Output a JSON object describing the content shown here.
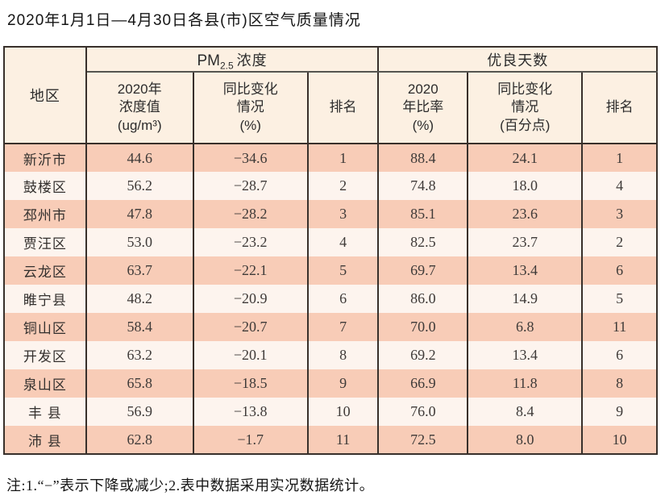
{
  "page": {
    "title": "2020年1月1日—4月30日各县(市)区空气质量情况",
    "footnote": "注:1.“−”表示下降或减少;2.表中数据采用实况数据统计。"
  },
  "table": {
    "corner_header": "地区",
    "groups": [
      {
        "prefix": "PM",
        "subscript": "2.5",
        "suffix": "浓度"
      },
      {
        "label": "优良天数"
      }
    ],
    "sub_headers": [
      "2020年\n浓度值\n(ug/m³)",
      "同比变化\n情况\n(%)",
      "排名",
      "2020\n年比率\n(%)",
      "同比变化\n情况\n(百分点)",
      "排名"
    ],
    "row_keys": [
      "region",
      "pm_value",
      "pm_change",
      "pm_rank",
      "good_rate",
      "good_change",
      "good_rank"
    ],
    "rows": [
      {
        "region": "新沂市",
        "pm_value": "44.6",
        "pm_change": "−34.6",
        "pm_rank": "1",
        "good_rate": "88.4",
        "good_change": "24.1",
        "good_rank": "1"
      },
      {
        "region": "鼓楼区",
        "pm_value": "56.2",
        "pm_change": "−28.7",
        "pm_rank": "2",
        "good_rate": "74.8",
        "good_change": "18.0",
        "good_rank": "4"
      },
      {
        "region": "邳州市",
        "pm_value": "47.8",
        "pm_change": "−28.2",
        "pm_rank": "3",
        "good_rate": "85.1",
        "good_change": "23.6",
        "good_rank": "3"
      },
      {
        "region": "贾汪区",
        "pm_value": "53.0",
        "pm_change": "−23.2",
        "pm_rank": "4",
        "good_rate": "82.5",
        "good_change": "23.7",
        "good_rank": "2"
      },
      {
        "region": "云龙区",
        "pm_value": "63.7",
        "pm_change": "−22.1",
        "pm_rank": "5",
        "good_rate": "69.7",
        "good_change": "13.4",
        "good_rank": "6"
      },
      {
        "region": "睢宁县",
        "pm_value": "48.2",
        "pm_change": "−20.9",
        "pm_rank": "6",
        "good_rate": "86.0",
        "good_change": "14.9",
        "good_rank": "5"
      },
      {
        "region": "铜山区",
        "pm_value": "58.4",
        "pm_change": "−20.7",
        "pm_rank": "7",
        "good_rate": "70.0",
        "good_change": "6.8",
        "good_rank": "11"
      },
      {
        "region": "开发区",
        "pm_value": "63.2",
        "pm_change": "−20.1",
        "pm_rank": "8",
        "good_rate": "69.2",
        "good_change": "13.4",
        "good_rank": "6"
      },
      {
        "region": "泉山区",
        "pm_value": "65.8",
        "pm_change": "−18.5",
        "pm_rank": "9",
        "good_rate": "66.9",
        "good_change": "11.8",
        "good_rank": "8"
      },
      {
        "region": "丰 县",
        "pm_value": "56.9",
        "pm_change": "−13.8",
        "pm_rank": "10",
        "good_rate": "76.0",
        "good_change": "8.4",
        "good_rank": "9"
      },
      {
        "region": "沛 县",
        "pm_value": "62.8",
        "pm_change": "−1.7",
        "pm_rank": "11",
        "good_rate": "72.5",
        "good_change": "8.0",
        "good_rank": "10"
      }
    ]
  },
  "colors": {
    "border": "#38302b",
    "rule": "#555550",
    "header_bg": "#fcf0e2",
    "row_salmon": "#f8ccb7",
    "row_light": "#fdf4ee",
    "text_dark": "#222222",
    "num_color": "#3e3a38",
    "page_bg": "#ffffff"
  }
}
